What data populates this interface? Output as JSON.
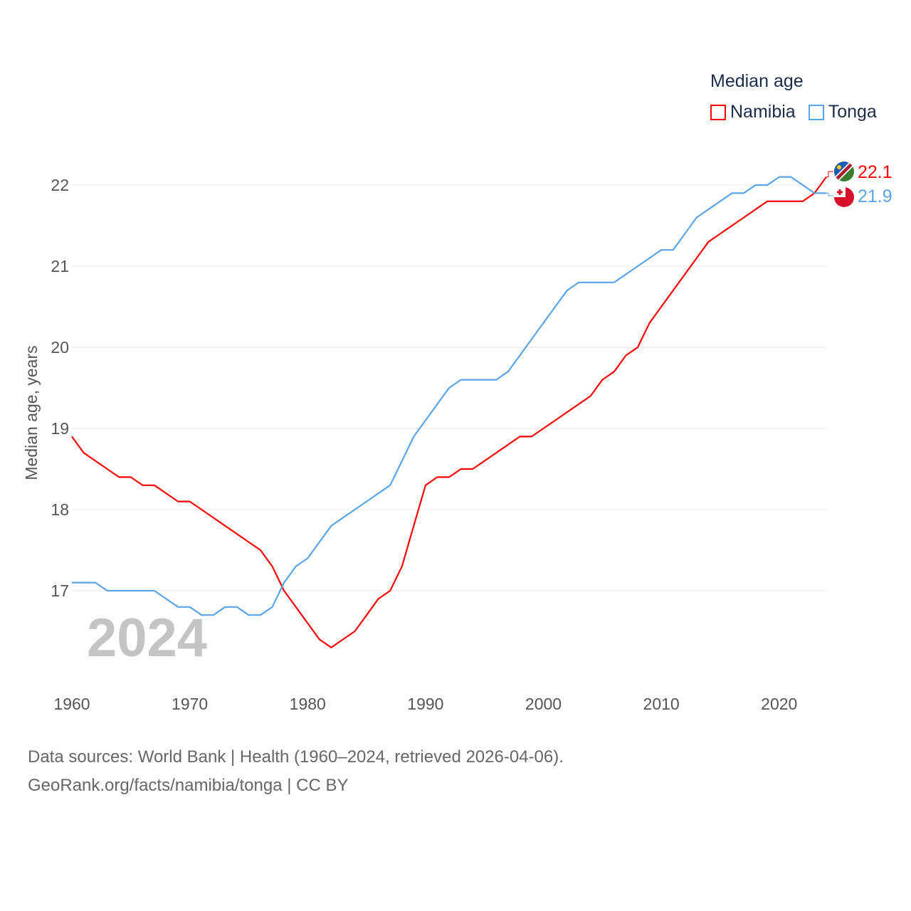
{
  "chart_data": {
    "type": "line",
    "title": "Median age",
    "xlabel": "",
    "ylabel": "Median age, years",
    "xlim": [
      1960,
      2024
    ],
    "ylim": [
      16,
      22.5
    ],
    "yticks": [
      17,
      18,
      19,
      20,
      21,
      22
    ],
    "xticks": [
      1960,
      1970,
      1980,
      1990,
      2000,
      2010,
      2020
    ],
    "grid": true,
    "legend_position": "top-right",
    "year_watermark": "2024",
    "x_start": 1960,
    "series": [
      {
        "name": "Namibia",
        "color": "#ff0000",
        "end_label": "22.1",
        "values": [
          18.9,
          18.7,
          18.6,
          18.5,
          18.4,
          18.4,
          18.3,
          18.3,
          18.2,
          18.1,
          18.1,
          18.0,
          17.9,
          17.8,
          17.7,
          17.6,
          17.5,
          17.3,
          17.0,
          16.8,
          16.6,
          16.4,
          16.3,
          16.4,
          16.5,
          16.7,
          16.9,
          17.0,
          17.3,
          17.8,
          18.3,
          18.4,
          18.4,
          18.5,
          18.5,
          18.6,
          18.7,
          18.8,
          18.9,
          18.9,
          19.0,
          19.1,
          19.2,
          19.3,
          19.4,
          19.6,
          19.7,
          19.9,
          20.0,
          20.3,
          20.5,
          20.7,
          20.9,
          21.1,
          21.3,
          21.4,
          21.5,
          21.6,
          21.7,
          21.8,
          21.8,
          21.8,
          21.8,
          21.9,
          22.1
        ]
      },
      {
        "name": "Tonga",
        "color": "#5ba4e8",
        "end_label": "21.9",
        "values": [
          17.1,
          17.1,
          17.1,
          17.0,
          17.0,
          17.0,
          17.0,
          17.0,
          16.9,
          16.8,
          16.8,
          16.7,
          16.7,
          16.8,
          16.8,
          16.7,
          16.7,
          16.8,
          17.1,
          17.3,
          17.4,
          17.6,
          17.8,
          17.9,
          18.0,
          18.1,
          18.2,
          18.3,
          18.6,
          18.9,
          19.1,
          19.3,
          19.5,
          19.6,
          19.6,
          19.6,
          19.6,
          19.7,
          19.9,
          20.1,
          20.3,
          20.5,
          20.7,
          20.8,
          20.8,
          20.8,
          20.8,
          20.9,
          21.0,
          21.1,
          21.2,
          21.2,
          21.4,
          21.6,
          21.7,
          21.8,
          21.9,
          21.9,
          22.0,
          22.0,
          22.1,
          22.1,
          22.0,
          21.9,
          21.9
        ]
      }
    ]
  },
  "footer": {
    "line1": "Data sources: World Bank | Health (1960–2024, retrieved 2026-04-06).",
    "line2": "GeoRank.org/facts/namibia/tonga | CC BY"
  }
}
